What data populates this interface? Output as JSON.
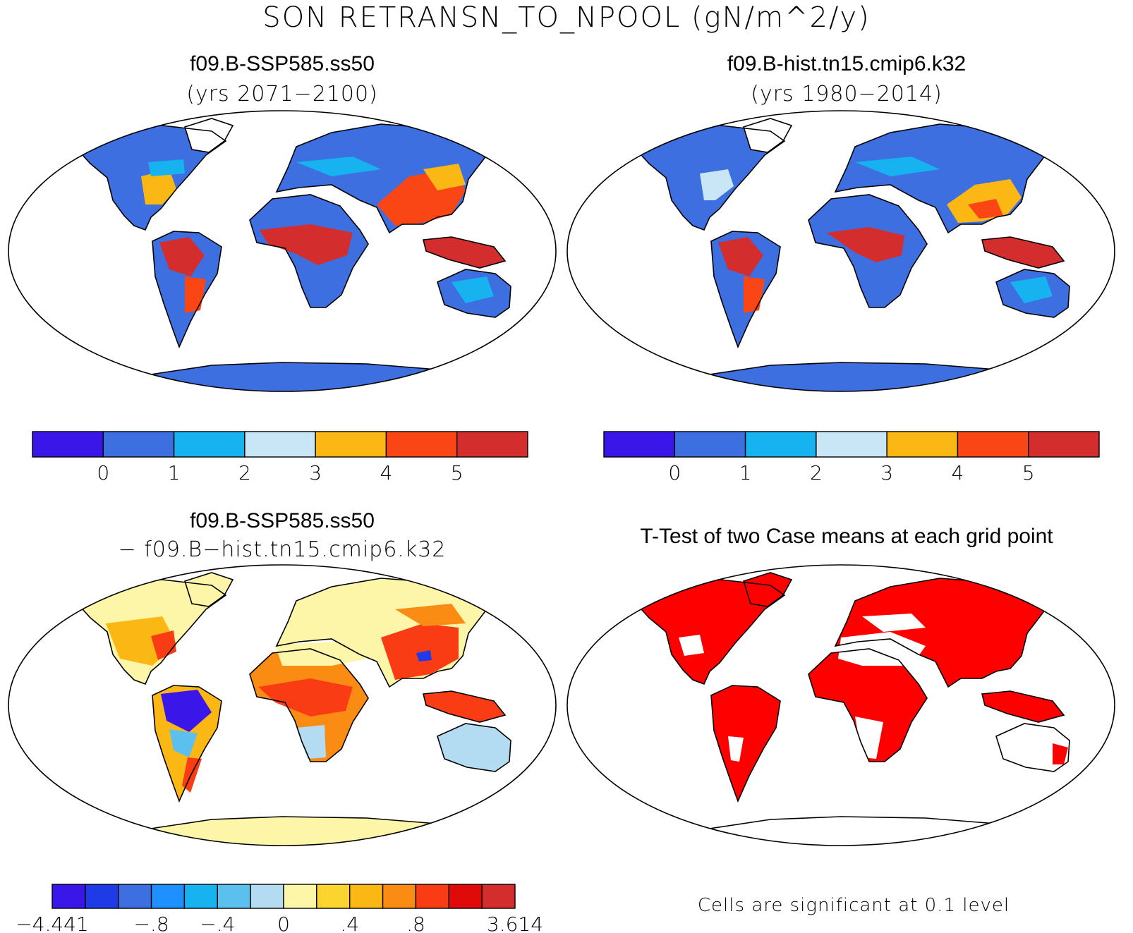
{
  "title": "SON RETRANSN_TO_NPOOL (gN/m^2/y)",
  "panels": [
    {
      "name": "f09.B-SSP585.ss50",
      "subtitle": "(yrs 2071−2100)"
    },
    {
      "name": "f09.B-hist.tn15.cmip6.k32",
      "subtitle": "(yrs 1980−2014)"
    },
    {
      "name": "f09.B-SSP585.ss50",
      "subtitle": "− f09.B−hist.tn15.cmip6.k32"
    },
    {
      "name": "T-Test of two Case means at each grid point",
      "subtitle": ""
    }
  ],
  "colorbar_top": {
    "colors": [
      "#3b16e8",
      "#3d6fe0",
      "#16b3f0",
      "#c8e6f5",
      "#fbb814",
      "#fa4614",
      "#d42d2d"
    ],
    "labels": [
      "0",
      "1",
      "2",
      "3",
      "4",
      "5"
    ]
  },
  "colorbar_diff": {
    "colors": [
      "#3b16e8",
      "#1f3be8",
      "#3d6fe0",
      "#1e90ff",
      "#16b3f0",
      "#5cc0ee",
      "#b3dcf2",
      "#fdf6a8",
      "#fbd430",
      "#fbb814",
      "#fa8c14",
      "#fa3c14",
      "#e10a0a",
      "#d42d2d"
    ],
    "labels": [
      "−4.441",
      "−.8",
      "−.4",
      "0",
      ".4",
      ".8",
      "3.614"
    ]
  },
  "significance_note": "Cells are significant at 0.1 level",
  "colors": {
    "ocean": "#ffffff",
    "significant": "#ff0000",
    "outline": "#000000"
  }
}
